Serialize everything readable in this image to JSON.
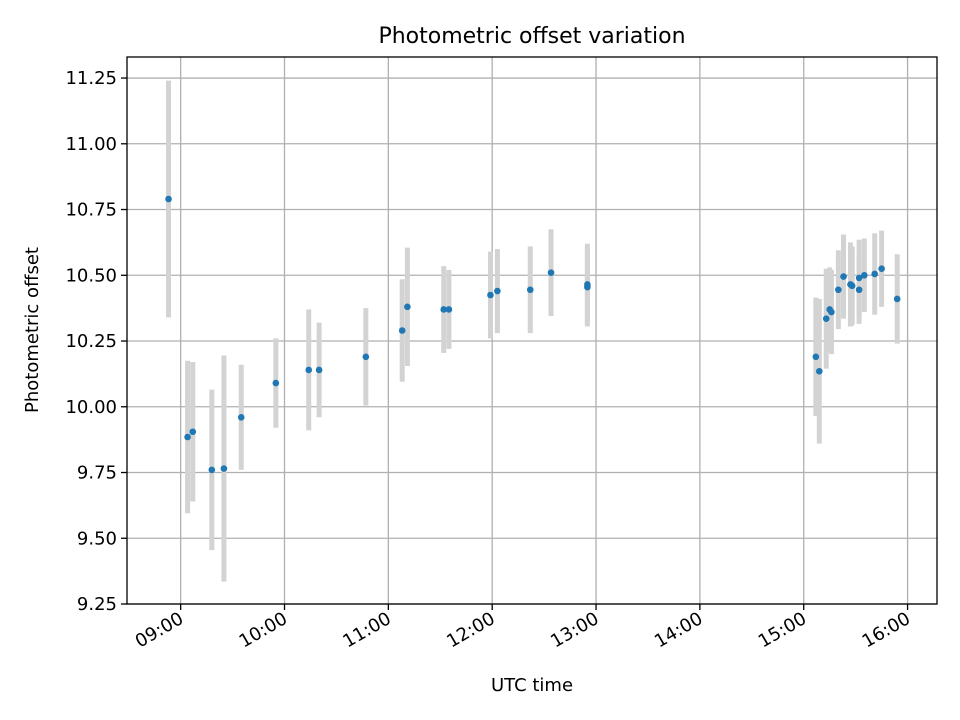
{
  "chart_data": {
    "type": "scatter",
    "title": "Photometric offset variation",
    "xlabel": "UTC time",
    "ylabel": "Photometric offset",
    "xlim": [
      "08:29",
      "16:17"
    ],
    "ylim": [
      9.25,
      11.33
    ],
    "x_ticks": [
      "09:00",
      "10:00",
      "11:00",
      "12:00",
      "13:00",
      "14:00",
      "15:00",
      "16:00"
    ],
    "y_ticks": [
      9.25,
      9.5,
      9.75,
      10.0,
      10.25,
      10.5,
      10.75,
      11.0,
      11.25
    ],
    "y_tick_labels": [
      "9.25",
      "9.50",
      "9.75",
      "10.00",
      "10.25",
      "10.50",
      "10.75",
      "11.00",
      "11.25"
    ],
    "grid": true,
    "colors": {
      "point": "#1f77b4",
      "errorbar": "#d3d3d3",
      "grid": "#b0b0b0"
    },
    "points": [
      {
        "x": "08:53",
        "y": 10.79,
        "yerr": 0.45
      },
      {
        "x": "09:04",
        "y": 9.885,
        "yerr": 0.29
      },
      {
        "x": "09:07",
        "y": 9.905,
        "yerr": 0.265
      },
      {
        "x": "09:18",
        "y": 9.76,
        "yerr": 0.305
      },
      {
        "x": "09:25",
        "y": 9.765,
        "yerr": 0.43
      },
      {
        "x": "09:35",
        "y": 9.96,
        "yerr": 0.2
      },
      {
        "x": "09:55",
        "y": 10.09,
        "yerr": 0.17
      },
      {
        "x": "10:14",
        "y": 10.14,
        "yerr": 0.23
      },
      {
        "x": "10:20",
        "y": 10.14,
        "yerr": 0.18
      },
      {
        "x": "10:47",
        "y": 10.19,
        "yerr": 0.185
      },
      {
        "x": "11:08",
        "y": 10.29,
        "yerr": 0.195
      },
      {
        "x": "11:11",
        "y": 10.38,
        "yerr": 0.225
      },
      {
        "x": "11:32",
        "y": 10.37,
        "yerr": 0.165
      },
      {
        "x": "11:35",
        "y": 10.37,
        "yerr": 0.15
      },
      {
        "x": "11:59",
        "y": 10.425,
        "yerr": 0.165
      },
      {
        "x": "12:03",
        "y": 10.44,
        "yerr": 0.16
      },
      {
        "x": "12:22",
        "y": 10.445,
        "yerr": 0.165
      },
      {
        "x": "12:34",
        "y": 10.51,
        "yerr": 0.165
      },
      {
        "x": "12:55",
        "y": 10.465,
        "yerr": 0.155
      },
      {
        "x": "12:55",
        "y": 10.455,
        "yerr": 0.15
      },
      {
        "x": "15:07",
        "y": 10.19,
        "yerr": 0.225
      },
      {
        "x": "15:09",
        "y": 10.135,
        "yerr": 0.275
      },
      {
        "x": "15:13",
        "y": 10.335,
        "yerr": 0.19
      },
      {
        "x": "15:15",
        "y": 10.37,
        "yerr": 0.16
      },
      {
        "x": "15:16",
        "y": 10.36,
        "yerr": 0.16
      },
      {
        "x": "15:20",
        "y": 10.445,
        "yerr": 0.15
      },
      {
        "x": "15:23",
        "y": 10.495,
        "yerr": 0.16
      },
      {
        "x": "15:27",
        "y": 10.465,
        "yerr": 0.16
      },
      {
        "x": "15:28",
        "y": 10.46,
        "yerr": 0.15
      },
      {
        "x": "15:32",
        "y": 10.49,
        "yerr": 0.145
      },
      {
        "x": "15:32",
        "y": 10.445,
        "yerr": 0.13
      },
      {
        "x": "15:35",
        "y": 10.5,
        "yerr": 0.14
      },
      {
        "x": "15:41",
        "y": 10.505,
        "yerr": 0.155
      },
      {
        "x": "15:45",
        "y": 10.525,
        "yerr": 0.145
      },
      {
        "x": "15:54",
        "y": 10.41,
        "yerr": 0.17
      }
    ]
  }
}
